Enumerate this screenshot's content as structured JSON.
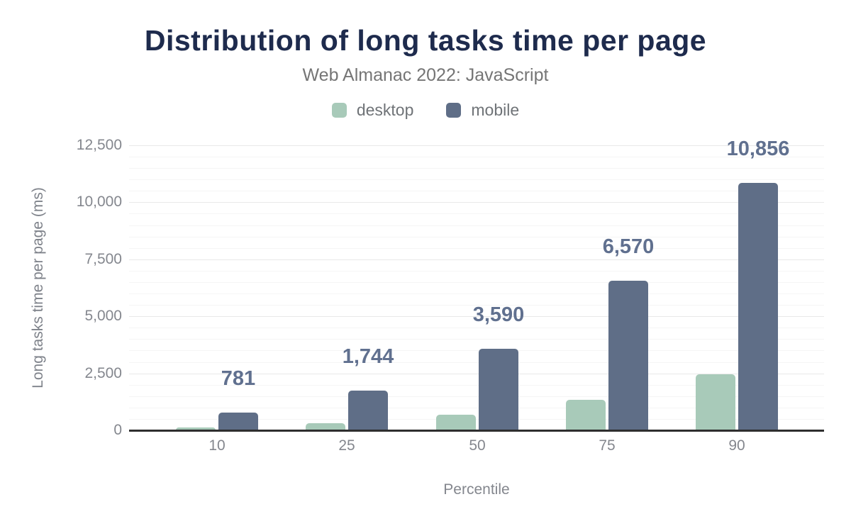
{
  "header": {
    "title": "Distribution of long tasks time per page",
    "subtitle": "Web Almanac 2022: JavaScript"
  },
  "legend": [
    {
      "label": "desktop",
      "color": "#a8cab9"
    },
    {
      "label": "mobile",
      "color": "#5f6e87"
    }
  ],
  "colors": {
    "title": "#1e2b4d",
    "subtitle_gray": "#757575",
    "desktop_bar": "#a8cab9",
    "mobile_bar": "#5f6e87",
    "data_label": "#60708f",
    "axis_line": "#2e2e2e",
    "tick_label_gray": "#84878e"
  },
  "chart_data": {
    "type": "bar",
    "title": "Distribution of long tasks time per page",
    "subtitle": "Web Almanac 2022: JavaScript",
    "xlabel": "Percentile",
    "ylabel": "Long tasks time per page (ms)",
    "categories": [
      "10",
      "25",
      "50",
      "75",
      "90"
    ],
    "series": [
      {
        "name": "desktop",
        "color": "#a8cab9",
        "values": [
          130,
          300,
          690,
          1350,
          2450
        ],
        "values_note": "unlabeled in chart; estimated from bar heights",
        "data_labels": [
          "",
          "",
          "",
          "",
          ""
        ]
      },
      {
        "name": "mobile",
        "color": "#5f6e87",
        "values": [
          781,
          1744,
          3590,
          6570,
          10856
        ],
        "data_labels": [
          "781",
          "1,744",
          "3,590",
          "6,570",
          "10,856"
        ]
      }
    ],
    "ylim": [
      0,
      12500
    ],
    "yticks": [
      {
        "value": 0,
        "label": "0"
      },
      {
        "value": 2500,
        "label": "2,500"
      },
      {
        "value": 5000,
        "label": "5,000"
      },
      {
        "value": 7500,
        "label": "7,500"
      },
      {
        "value": 10000,
        "label": "10,000"
      },
      {
        "value": 12500,
        "label": "12,500"
      }
    ],
    "minor_grid_step": 500,
    "major_grid_step": 2500,
    "grid": true,
    "legend_position": "top"
  }
}
